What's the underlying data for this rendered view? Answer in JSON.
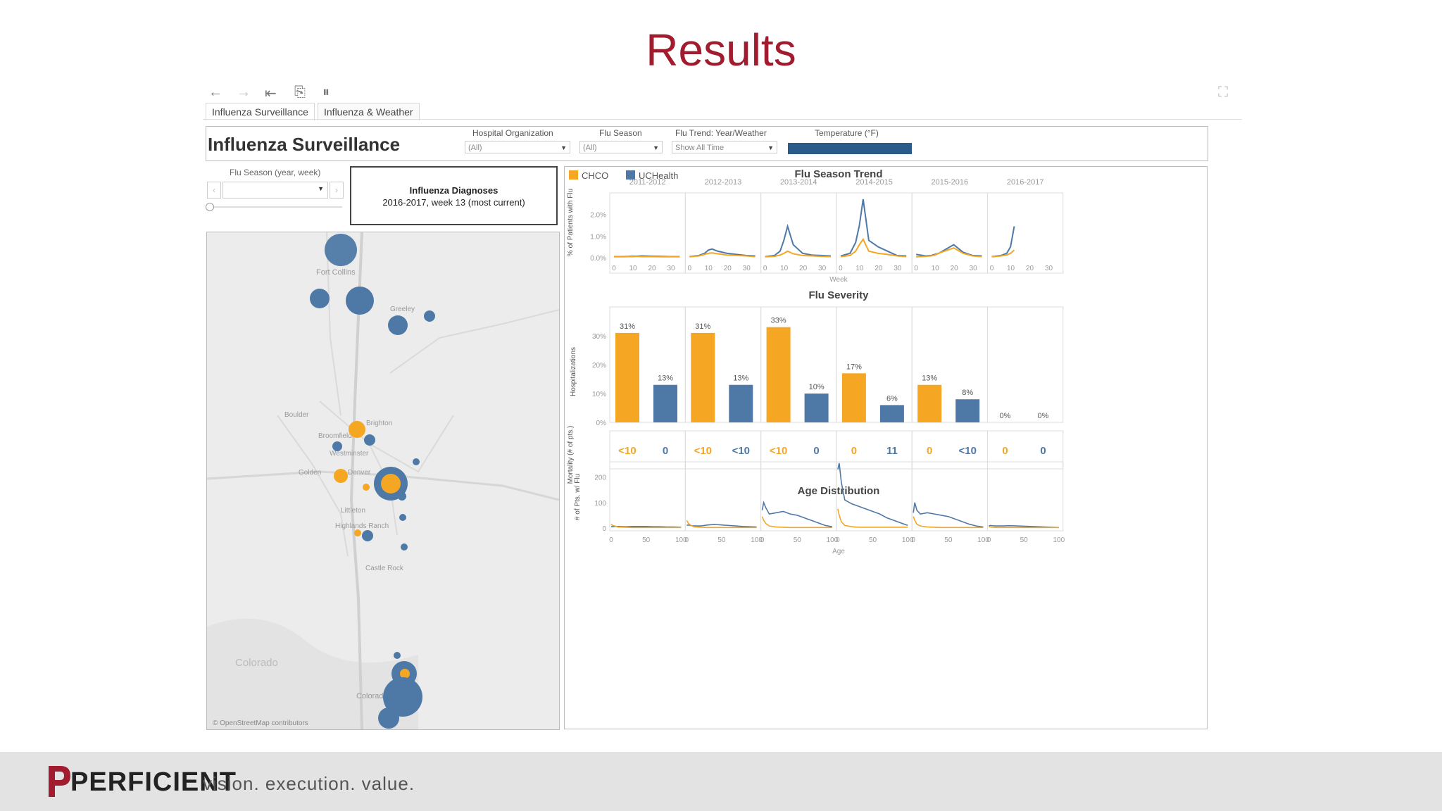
{
  "slide": {
    "title": "Results"
  },
  "tabs": [
    "Influenza Surveillance",
    "Influenza & Weather"
  ],
  "dashboard": {
    "title": "Influenza Surveillance",
    "filters": [
      {
        "label": "Hospital Organization",
        "value": "(All)"
      },
      {
        "label": "Flu Season",
        "value": "(All)"
      },
      {
        "label": "Flu Trend: Year/Weather",
        "value": "Show All Time"
      }
    ],
    "temperature_label": "Temperature (°F)"
  },
  "left": {
    "season_label": "Flu Season (year, week)",
    "diag_line1": "Influenza Diagnoses",
    "diag_line2": "2016-2017, week 13 (most current)",
    "attribution": "© OpenStreetMap contributors",
    "map_places": [
      "Fort Collins",
      "Greeley",
      "Boulder",
      "Brighton",
      "Broomfield",
      "Westminster",
      "Golden",
      "Denver",
      "Littleton",
      "Highlands Ranch",
      "Castle Rock",
      "Colorado",
      "Colorado Springs"
    ]
  },
  "legend": [
    {
      "name": "CHCO",
      "color": "#f5a623"
    },
    {
      "name": "UCHealth",
      "color": "#4e79a7"
    }
  ],
  "colors": {
    "chco": "#f5a623",
    "uc": "#4e79a7",
    "brand": "#a01c2e"
  },
  "seasons": [
    "2011-2012",
    "2012-2013",
    "2013-2014",
    "2014-2015",
    "2015-2016",
    "2016-2017"
  ],
  "trend": {
    "title": "Flu Season Trend",
    "ylabel": "% of Patients with Flu",
    "xlabel": "Week",
    "yticks": [
      "0.0%",
      "1.0%",
      "2.0%"
    ],
    "xticks": [
      "0",
      "10",
      "20",
      "30"
    ],
    "ylim": [
      0,
      2.8
    ]
  },
  "severity": {
    "title": "Flu Severity",
    "ylabel": "Hospitalizations",
    "yticks": [
      "0%",
      "10%",
      "20%",
      "30%"
    ],
    "chco": [
      31,
      31,
      33,
      17,
      13,
      0
    ],
    "uc": [
      13,
      13,
      10,
      6,
      8,
      0
    ],
    "chco_labels": [
      "31%",
      "31%",
      "33%",
      "17%",
      "13%",
      "0%"
    ],
    "uc_labels": [
      "13%",
      "13%",
      "10%",
      "6%",
      "8%",
      "0%"
    ],
    "mortality_label": "Mortality (# of pts.)",
    "mortality_chco": [
      "<10",
      "<10",
      "<10",
      "0",
      "0",
      "0"
    ],
    "mortality_uc": [
      "0",
      "<10",
      "0",
      "11",
      "<10",
      "0"
    ]
  },
  "age": {
    "title": "Age Distribution",
    "ylabel": "# of Pts. w/ Flu",
    "xlabel": "Age",
    "yticks": [
      "0",
      "100",
      "200"
    ],
    "xticks": [
      "0",
      "50",
      "100"
    ],
    "ylim": [
      0,
      260
    ]
  },
  "chart_data": [
    {
      "type": "line",
      "title": "Flu Season Trend",
      "xlabel": "Week",
      "ylabel": "% of Patients with Flu",
      "ylim": [
        0,
        2.8
      ],
      "x": [
        0,
        5,
        8,
        10,
        12,
        15,
        20,
        25,
        30,
        35
      ],
      "panels": [
        "2011-2012",
        "2012-2013",
        "2013-2014",
        "2014-2015",
        "2015-2016",
        "2016-2017"
      ],
      "series": [
        {
          "name": "UCHealth",
          "values": [
            [
              0.05,
              0.05,
              0.06,
              0.07,
              0.07,
              0.08,
              0.07,
              0.06,
              0.05,
              0.05
            ],
            [
              0.05,
              0.1,
              0.2,
              0.35,
              0.4,
              0.3,
              0.2,
              0.15,
              0.1,
              0.08
            ],
            [
              0.05,
              0.1,
              0.3,
              0.8,
              1.45,
              0.6,
              0.2,
              0.12,
              0.1,
              0.08
            ],
            [
              0.08,
              0.2,
              0.7,
              1.5,
              2.7,
              0.8,
              0.5,
              0.3,
              0.1,
              0.08
            ],
            [
              0.15,
              0.08,
              0.1,
              0.15,
              0.2,
              0.35,
              0.6,
              0.25,
              0.1,
              0.08
            ],
            [
              0.05,
              0.1,
              0.2,
              0.5,
              1.45
            ]
          ]
        },
        {
          "name": "CHCO",
          "values": [
            [
              0.04,
              0.04,
              0.05,
              0.05,
              0.06,
              0.05,
              0.05,
              0.04,
              0.04,
              0.04
            ],
            [
              0.04,
              0.08,
              0.15,
              0.2,
              0.22,
              0.18,
              0.12,
              0.1,
              0.08,
              0.05
            ],
            [
              0.04,
              0.06,
              0.12,
              0.2,
              0.3,
              0.18,
              0.1,
              0.08,
              0.06,
              0.05
            ],
            [
              0.05,
              0.1,
              0.3,
              0.6,
              0.85,
              0.3,
              0.2,
              0.15,
              0.08,
              0.05
            ],
            [
              0.04,
              0.06,
              0.08,
              0.12,
              0.2,
              0.3,
              0.45,
              0.2,
              0.08,
              0.05
            ],
            [
              0.04,
              0.08,
              0.12,
              0.2,
              0.35
            ]
          ]
        }
      ]
    },
    {
      "type": "bar",
      "title": "Flu Severity",
      "ylabel": "Hospitalizations",
      "categories": [
        "2011-2012",
        "2012-2013",
        "2013-2014",
        "2014-2015",
        "2015-2016",
        "2016-2017"
      ],
      "series": [
        {
          "name": "CHCO",
          "values": [
            31,
            31,
            33,
            17,
            13,
            0
          ]
        },
        {
          "name": "UCHealth",
          "values": [
            13,
            13,
            10,
            6,
            8,
            0
          ]
        }
      ],
      "ylim": [
        0,
        40
      ]
    },
    {
      "type": "line",
      "title": "Age Distribution",
      "xlabel": "Age",
      "ylabel": "# of Pts. w/ Flu",
      "ylim": [
        0,
        260
      ],
      "x": [
        0,
        2,
        5,
        10,
        20,
        30,
        40,
        50,
        60,
        70,
        80,
        90,
        100
      ],
      "panels": [
        "2011-2012",
        "2012-2013",
        "2013-2014",
        "2014-2015",
        "2015-2016",
        "2016-2017"
      ],
      "series": [
        {
          "name": "UCHealth",
          "values": [
            [
              5,
              5,
              6,
              6,
              5,
              6,
              6,
              6,
              5,
              5,
              4,
              4,
              3
            ],
            [
              10,
              12,
              10,
              8,
              8,
              12,
              14,
              12,
              10,
              8,
              6,
              5,
              4
            ],
            [
              70,
              100,
              80,
              55,
              60,
              65,
              55,
              50,
              40,
              30,
              20,
              10,
              5
            ],
            [
              230,
              255,
              180,
              110,
              95,
              85,
              75,
              65,
              55,
              40,
              30,
              20,
              10
            ],
            [
              60,
              100,
              70,
              55,
              60,
              55,
              50,
              45,
              35,
              25,
              15,
              8,
              4
            ],
            [
              8,
              10,
              9,
              8,
              8,
              9,
              8,
              7,
              6,
              5,
              4,
              3,
              2
            ]
          ]
        },
        {
          "name": "CHCO",
          "values": [
            [
              15,
              10,
              8,
              4,
              3,
              2,
              2,
              2,
              2,
              2,
              2,
              2,
              2
            ],
            [
              30,
              20,
              12,
              5,
              3,
              2,
              2,
              2,
              2,
              2,
              2,
              2,
              2
            ],
            [
              45,
              30,
              18,
              8,
              4,
              3,
              2,
              2,
              2,
              2,
              2,
              2,
              2
            ],
            [
              75,
              50,
              25,
              10,
              5,
              3,
              3,
              3,
              3,
              3,
              3,
              3,
              3
            ],
            [
              45,
              30,
              15,
              8,
              4,
              3,
              2,
              2,
              2,
              2,
              2,
              2,
              2
            ],
            [
              5,
              4,
              3,
              2,
              2,
              2,
              2,
              2,
              2,
              2,
              2,
              2,
              2
            ]
          ]
        }
      ]
    }
  ],
  "footer": {
    "brand": "PERFICIENT",
    "tagline": "vision.  execution.  value."
  }
}
